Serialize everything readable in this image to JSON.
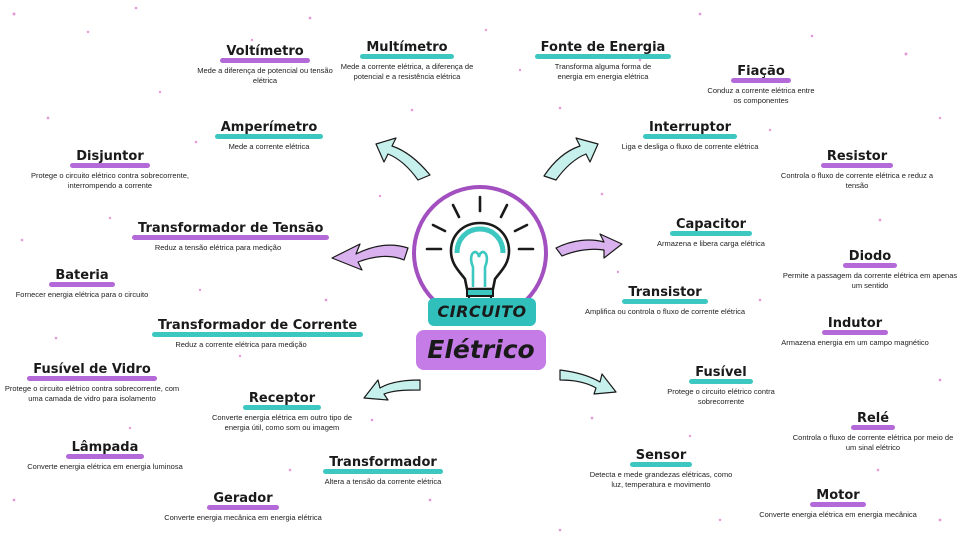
{
  "center": {
    "line1": "CIRCUITO",
    "line2": "Elétrico",
    "icon": "light-bulb-icon"
  },
  "colors": {
    "purple": "#b36ad8",
    "teal": "#3cc7c0",
    "bulb_ring": "#a24fc0"
  },
  "nodes": [
    {
      "id": "voltimetro",
      "title": "Voltímetro",
      "desc": "Mede a diferença de potencial ou tensão elétrica",
      "color": "purple"
    },
    {
      "id": "multimetro",
      "title": "Multímetro",
      "desc": "Mede a corrente elétrica, a diferença de potencial e a resistência elétrica",
      "color": "teal"
    },
    {
      "id": "fonte",
      "title": "Fonte de Energia",
      "desc": "Transforma alguma forma de energia em energia elétrica",
      "color": "teal"
    },
    {
      "id": "fiacao",
      "title": "Fiação",
      "desc": "Conduz a corrente elétrica entre os componentes",
      "color": "purple"
    },
    {
      "id": "amperimetro",
      "title": "Amperímetro",
      "desc": "Mede a corrente elétrica",
      "color": "teal"
    },
    {
      "id": "interruptor",
      "title": "Interruptor",
      "desc": "Liga e desliga o fluxo de corrente elétrica",
      "color": "teal"
    },
    {
      "id": "disjuntor",
      "title": "Disjuntor",
      "desc": "Protege o circuito elétrico contra sobrecorrente, interrompendo a corrente",
      "color": "purple"
    },
    {
      "id": "resistor",
      "title": "Resistor",
      "desc": "Controla o fluxo de corrente elétrica e reduz a tensão",
      "color": "purple"
    },
    {
      "id": "trafo_tensao",
      "title": "Transformador de Tensão",
      "desc": "Reduz a tensão elétrica para medição",
      "color": "purple"
    },
    {
      "id": "capacitor",
      "title": "Capacitor",
      "desc": "Armazena e libera carga elétrica",
      "color": "teal"
    },
    {
      "id": "bateria",
      "title": "Bateria",
      "desc": "Fornecer energia elétrica para o circuito",
      "color": "purple"
    },
    {
      "id": "diodo",
      "title": "Diodo",
      "desc": "Permite a passagem da corrente elétrica em apenas um sentido",
      "color": "purple"
    },
    {
      "id": "transistor",
      "title": "Transistor",
      "desc": "Amplifica ou controla o fluxo de corrente elétrica",
      "color": "teal"
    },
    {
      "id": "trafo_corrente",
      "title": "Transformador de Corrente",
      "desc": "Reduz a corrente elétrica para medição",
      "color": "teal"
    },
    {
      "id": "indutor",
      "title": "Indutor",
      "desc": "Armazena energia em um campo magnético",
      "color": "purple"
    },
    {
      "id": "fusivel_vidro",
      "title": "Fusível de Vidro",
      "desc": "Protege o circuito elétrico contra sobrecorrente, com uma camada de vidro para isolamento",
      "color": "purple"
    },
    {
      "id": "fusivel",
      "title": "Fusível",
      "desc": "Protege o circuito elétrico contra sobrecorrente",
      "color": "teal"
    },
    {
      "id": "receptor",
      "title": "Receptor",
      "desc": "Converte energia elétrica em outro tipo de energia útil, como som ou imagem",
      "color": "teal"
    },
    {
      "id": "rele",
      "title": "Relé",
      "desc": "Controla o fluxo de corrente elétrica por meio de um sinal elétrico",
      "color": "purple"
    },
    {
      "id": "lampada",
      "title": "Lâmpada",
      "desc": "Converte energia elétrica em energia luminosa",
      "color": "purple"
    },
    {
      "id": "sensor",
      "title": "Sensor",
      "desc": "Detecta e mede grandezas elétricas, como luz, temperatura e movimento",
      "color": "teal"
    },
    {
      "id": "transformador",
      "title": "Transformador",
      "desc": "Altera a tensão da corrente elétrica",
      "color": "teal"
    },
    {
      "id": "gerador",
      "title": "Gerador",
      "desc": "Converte energia mecânica em energia elétrica",
      "color": "purple"
    },
    {
      "id": "motor",
      "title": "Motor",
      "desc": "Converte energia elétrica em energia mecânica",
      "color": "purple"
    }
  ]
}
